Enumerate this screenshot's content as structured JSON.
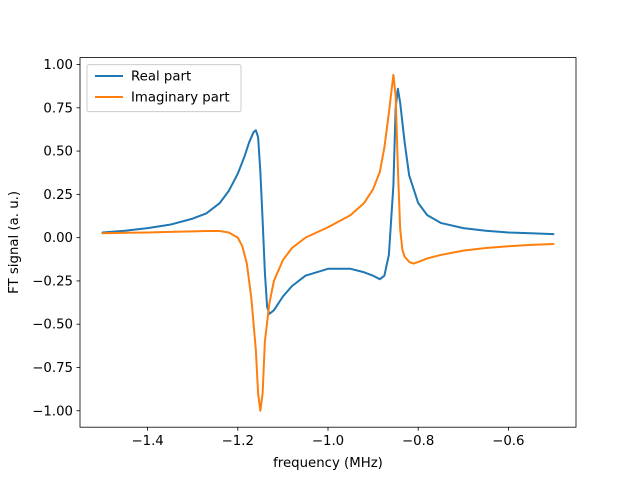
{
  "chart_data": {
    "type": "line",
    "title": "",
    "xlabel": "frequency (MHz)",
    "ylabel": "FT signal (a. u.)",
    "xlim": [
      -1.55,
      -0.45
    ],
    "ylim": [
      -1.095,
      1.04
    ],
    "xticks": [
      -1.4,
      -1.2,
      -1.0,
      -0.8,
      -0.6
    ],
    "xtick_labels": [
      "−1.4",
      "−1.2",
      "−1.0",
      "−0.8",
      "−0.6"
    ],
    "yticks": [
      1.0,
      0.75,
      0.5,
      0.25,
      0.0,
      -0.25,
      -0.5,
      -0.75,
      -1.0
    ],
    "ytick_labels": [
      "1.00",
      "0.75",
      "0.50",
      "0.25",
      "0.00",
      "−0.25",
      "−0.50",
      "−0.75",
      "−1.00"
    ],
    "grid": false,
    "legend": "top-left",
    "series": [
      {
        "name": "Real part",
        "color": "#1f77b4",
        "points": [
          [
            -1.5,
            0.03
          ],
          [
            -1.45,
            0.04
          ],
          [
            -1.4,
            0.055
          ],
          [
            -1.35,
            0.075
          ],
          [
            -1.3,
            0.11
          ],
          [
            -1.27,
            0.14
          ],
          [
            -1.24,
            0.2
          ],
          [
            -1.22,
            0.27
          ],
          [
            -1.2,
            0.37
          ],
          [
            -1.185,
            0.47
          ],
          [
            -1.175,
            0.55
          ],
          [
            -1.165,
            0.61
          ],
          [
            -1.16,
            0.62
          ],
          [
            -1.155,
            0.58
          ],
          [
            -1.15,
            0.38
          ],
          [
            -1.145,
            0.1
          ],
          [
            -1.14,
            -0.2
          ],
          [
            -1.135,
            -0.4
          ],
          [
            -1.13,
            -0.44
          ],
          [
            -1.12,
            -0.42
          ],
          [
            -1.1,
            -0.34
          ],
          [
            -1.08,
            -0.28
          ],
          [
            -1.05,
            -0.22
          ],
          [
            -1.0,
            -0.18
          ],
          [
            -0.95,
            -0.18
          ],
          [
            -0.92,
            -0.2
          ],
          [
            -0.9,
            -0.22
          ],
          [
            -0.885,
            -0.24
          ],
          [
            -0.875,
            -0.22
          ],
          [
            -0.865,
            -0.1
          ],
          [
            -0.855,
            0.3
          ],
          [
            -0.85,
            0.75
          ],
          [
            -0.845,
            0.86
          ],
          [
            -0.84,
            0.78
          ],
          [
            -0.83,
            0.55
          ],
          [
            -0.82,
            0.36
          ],
          [
            -0.8,
            0.2
          ],
          [
            -0.78,
            0.13
          ],
          [
            -0.75,
            0.085
          ],
          [
            -0.7,
            0.055
          ],
          [
            -0.65,
            0.04
          ],
          [
            -0.6,
            0.03
          ],
          [
            -0.55,
            0.025
          ],
          [
            -0.5,
            0.02
          ]
        ]
      },
      {
        "name": "Imaginary part",
        "color": "#ff7f0e",
        "points": [
          [
            -1.5,
            0.025
          ],
          [
            -1.45,
            0.028
          ],
          [
            -1.4,
            0.03
          ],
          [
            -1.35,
            0.033
          ],
          [
            -1.3,
            0.036
          ],
          [
            -1.27,
            0.038
          ],
          [
            -1.24,
            0.038
          ],
          [
            -1.22,
            0.03
          ],
          [
            -1.2,
            0.0
          ],
          [
            -1.19,
            -0.05
          ],
          [
            -1.18,
            -0.15
          ],
          [
            -1.17,
            -0.35
          ],
          [
            -1.16,
            -0.65
          ],
          [
            -1.155,
            -0.9
          ],
          [
            -1.15,
            -1.0
          ],
          [
            -1.145,
            -0.9
          ],
          [
            -1.14,
            -0.6
          ],
          [
            -1.13,
            -0.38
          ],
          [
            -1.12,
            -0.25
          ],
          [
            -1.1,
            -0.13
          ],
          [
            -1.08,
            -0.06
          ],
          [
            -1.05,
            0.0
          ],
          [
            -1.0,
            0.06
          ],
          [
            -0.95,
            0.13
          ],
          [
            -0.92,
            0.2
          ],
          [
            -0.9,
            0.28
          ],
          [
            -0.885,
            0.38
          ],
          [
            -0.875,
            0.52
          ],
          [
            -0.865,
            0.72
          ],
          [
            -0.855,
            0.94
          ],
          [
            -0.85,
            0.82
          ],
          [
            -0.845,
            0.4
          ],
          [
            -0.84,
            0.05
          ],
          [
            -0.835,
            -0.07
          ],
          [
            -0.83,
            -0.11
          ],
          [
            -0.82,
            -0.14
          ],
          [
            -0.81,
            -0.15
          ],
          [
            -0.8,
            -0.14
          ],
          [
            -0.78,
            -0.12
          ],
          [
            -0.75,
            -0.1
          ],
          [
            -0.7,
            -0.075
          ],
          [
            -0.65,
            -0.06
          ],
          [
            -0.6,
            -0.05
          ],
          [
            -0.55,
            -0.042
          ],
          [
            -0.5,
            -0.037
          ]
        ]
      }
    ]
  }
}
